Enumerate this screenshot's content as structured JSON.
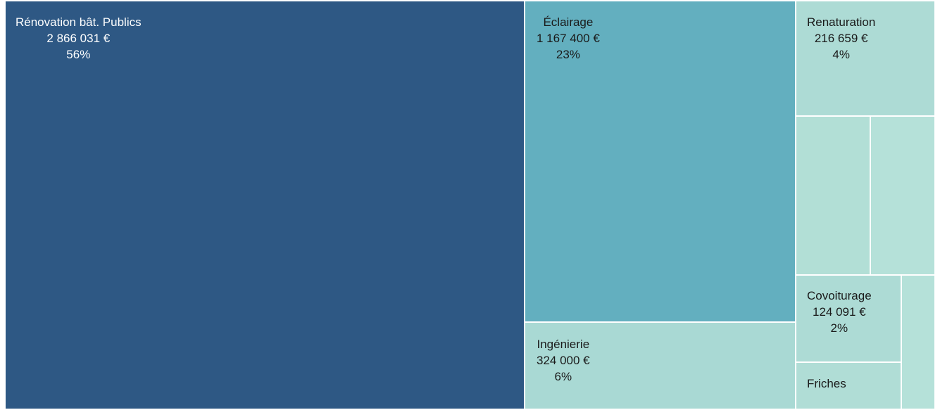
{
  "chart_data": {
    "type": "treemap",
    "currency": "€",
    "items": [
      {
        "label": "Rénovation bât. Publics",
        "value_text": "2 866 031 €",
        "percent_text": "56%",
        "value": 2866031,
        "percent": 56,
        "color": "#2e5884",
        "text_color": "#ffffff"
      },
      {
        "label": "Éclairage",
        "value_text": "1 167 400 €",
        "percent_text": "23%",
        "value": 1167400,
        "percent": 23,
        "color": "#63afbf",
        "text_color": "#1a1a1a"
      },
      {
        "label": "Ingénierie",
        "value_text": "324 000 €",
        "percent_text": "6%",
        "value": 324000,
        "percent": 6,
        "color": "#a9d9d4",
        "text_color": "#1a1a1a"
      },
      {
        "label": "Renaturation",
        "value_text": "216 659 €",
        "percent_text": "4%",
        "value": 216659,
        "percent": 4,
        "color": "#addbd5",
        "text_color": "#1a1a1a"
      },
      {
        "label": "",
        "value_text": "",
        "percent_text": "",
        "color": "#b2dfd6",
        "text_color": "#1a1a1a"
      },
      {
        "label": "",
        "value_text": "",
        "percent_text": "",
        "color": "#b5e1d9",
        "text_color": "#1a1a1a"
      },
      {
        "label": "Covoiturage",
        "value_text": "124 091 €",
        "percent_text": "2%",
        "value": 124091,
        "percent": 2,
        "color": "#addbd5",
        "text_color": "#1a1a1a"
      },
      {
        "label": "Friches",
        "value_text": "",
        "percent_text": "",
        "color": "#b0ddd6",
        "text_color": "#1a1a1a"
      },
      {
        "label": "",
        "value_text": "",
        "percent_text": "",
        "color": "#b5e1d9",
        "text_color": "#1a1a1a"
      }
    ]
  }
}
